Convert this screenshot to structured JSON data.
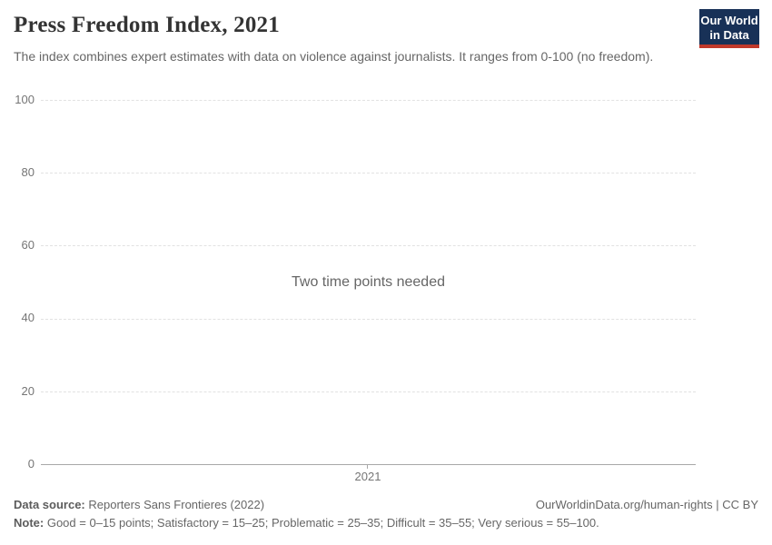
{
  "header": {
    "title": "Press Freedom Index, 2021",
    "subtitle": "The index combines expert estimates with data on violence against journalists. It ranges from 0-100 (no freedom).",
    "logo": {
      "line1": "Our World",
      "line2": "in Data"
    }
  },
  "chart_data": {
    "type": "line",
    "title": "Press Freedom Index, 2021",
    "empty_message": "Two time points needed",
    "series": [],
    "x_ticks": [
      "2021"
    ],
    "y_ticks": [
      "0",
      "20",
      "40",
      "60",
      "80",
      "100"
    ],
    "ylim": [
      0,
      100
    ],
    "xlabel": "",
    "ylabel": "",
    "grid": "horizontal-dashed",
    "legend_position": "none"
  },
  "footer": {
    "data_source_label": "Data source:",
    "data_source": "Reporters Sans Frontieres (2022)",
    "attribution": "OurWorldinData.org/human-rights | CC BY",
    "note_label": "Note:",
    "note": "Good = 0–15 points; Satisfactory = 15–25; Problematic = 25–35; Difficult = 35–55; Very serious = 55–100."
  },
  "colors": {
    "title_text": "#333333",
    "body_text": "#666666",
    "axis_text": "#757575",
    "gridline": "#e2e2e2",
    "axis_line": "#a8a8a8",
    "logo_navy": "#183157",
    "logo_red": "#c0392b"
  }
}
